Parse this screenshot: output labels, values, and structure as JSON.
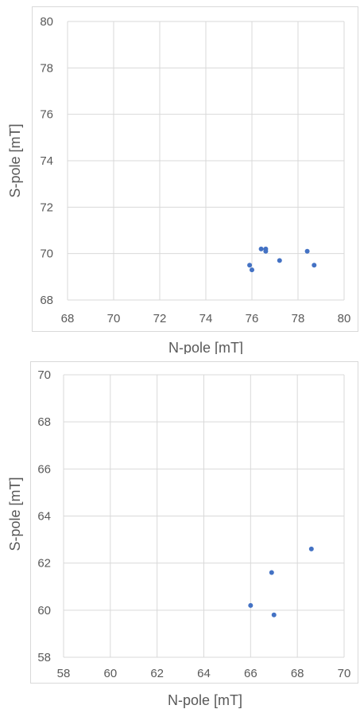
{
  "chart_data": [
    {
      "type": "scatter",
      "title": "",
      "xlabel": "N-pole [mT]",
      "ylabel": "S-pole [mT]",
      "xlim": [
        68,
        80
      ],
      "ylim": [
        68,
        80
      ],
      "xticks": [
        "68",
        "70",
        "72",
        "74",
        "76",
        "78",
        "80"
      ],
      "yticks": [
        "68",
        "70",
        "72",
        "74",
        "76",
        "78",
        "80"
      ],
      "grid": true,
      "legend": "none",
      "series": [
        {
          "color": "#4472C4",
          "x": [
            75.9,
            76.0,
            76.4,
            76.6,
            76.6,
            77.2,
            78.4,
            78.7
          ],
          "y": [
            69.5,
            69.3,
            70.2,
            70.2,
            70.1,
            69.7,
            70.1,
            69.5
          ]
        }
      ]
    },
    {
      "type": "scatter",
      "title": "",
      "xlabel": "N-pole [mT]",
      "ylabel": "S-pole [mT]",
      "xlim": [
        58,
        70
      ],
      "ylim": [
        58,
        70
      ],
      "xticks": [
        "58",
        "60",
        "62",
        "64",
        "66",
        "68",
        "70"
      ],
      "yticks": [
        "58",
        "60",
        "62",
        "64",
        "66",
        "68",
        "70"
      ],
      "grid": true,
      "legend": "none",
      "series": [
        {
          "color": "#4472C4",
          "x": [
            66.0,
            66.9,
            67.0,
            68.6
          ],
          "y": [
            60.2,
            61.6,
            59.8,
            62.6
          ]
        }
      ]
    }
  ]
}
